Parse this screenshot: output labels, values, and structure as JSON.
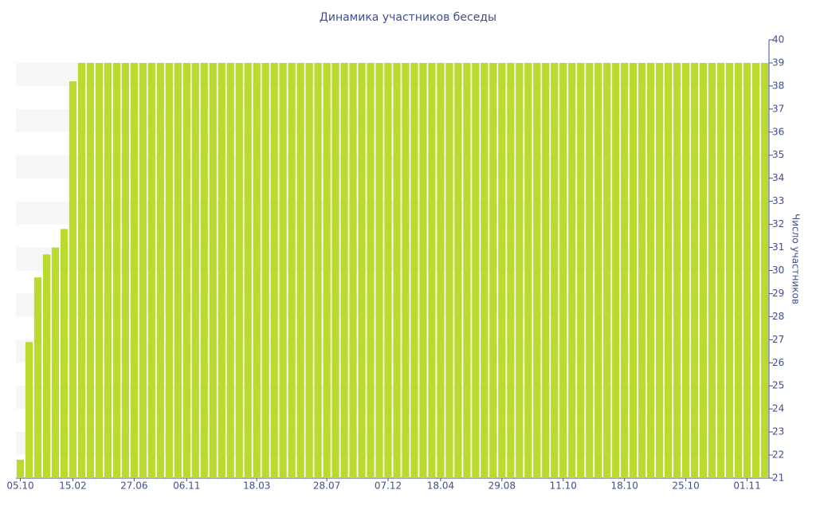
{
  "chart_data": {
    "type": "bar",
    "title": "Динамика участников беседы",
    "y_label": "Число участников",
    "categories": [
      "05.10",
      null,
      null,
      null,
      null,
      null,
      "15.02",
      null,
      null,
      null,
      null,
      null,
      null,
      "27.06",
      null,
      null,
      null,
      null,
      null,
      "06.11",
      null,
      null,
      null,
      null,
      null,
      null,
      null,
      "18.03",
      null,
      null,
      null,
      null,
      null,
      null,
      null,
      "28.07",
      null,
      null,
      null,
      null,
      null,
      null,
      "07.12",
      null,
      null,
      null,
      null,
      null,
      "18.04",
      null,
      null,
      null,
      null,
      null,
      null,
      "29.08",
      null,
      null,
      null,
      null,
      null,
      null,
      "11.10",
      null,
      null,
      null,
      null,
      null,
      null,
      "18.10",
      null,
      null,
      null,
      null,
      null,
      null,
      "25.10",
      null,
      null,
      null,
      null,
      null,
      null,
      "01.11",
      null,
      null
    ],
    "values": [
      21.8,
      26.9,
      29.7,
      30.7,
      31.0,
      31.8,
      38.2,
      39,
      39,
      39,
      39,
      39,
      39,
      39,
      39,
      39,
      39,
      39,
      39,
      39,
      39,
      39,
      39,
      39,
      39,
      39,
      39,
      39,
      39,
      39,
      39,
      39,
      39,
      39,
      39,
      39,
      39,
      39,
      39,
      39,
      39,
      39,
      39,
      39,
      39,
      39,
      39,
      39,
      39,
      39,
      39,
      39,
      39,
      39,
      39,
      39,
      39,
      39,
      39,
      39,
      39,
      39,
      39,
      39,
      39,
      39,
      39,
      39,
      39,
      39,
      39,
      39,
      39,
      39,
      39,
      39,
      39,
      39,
      39,
      39,
      39,
      39,
      39,
      39,
      39,
      39
    ],
    "color": "#bada2f",
    "ylim": [
      21,
      40
    ],
    "yticks": [
      21,
      22,
      23,
      24,
      25,
      26,
      27,
      28,
      29,
      30,
      31,
      32,
      33,
      34,
      35,
      36,
      37,
      38,
      39,
      40
    ],
    "grid": true
  }
}
